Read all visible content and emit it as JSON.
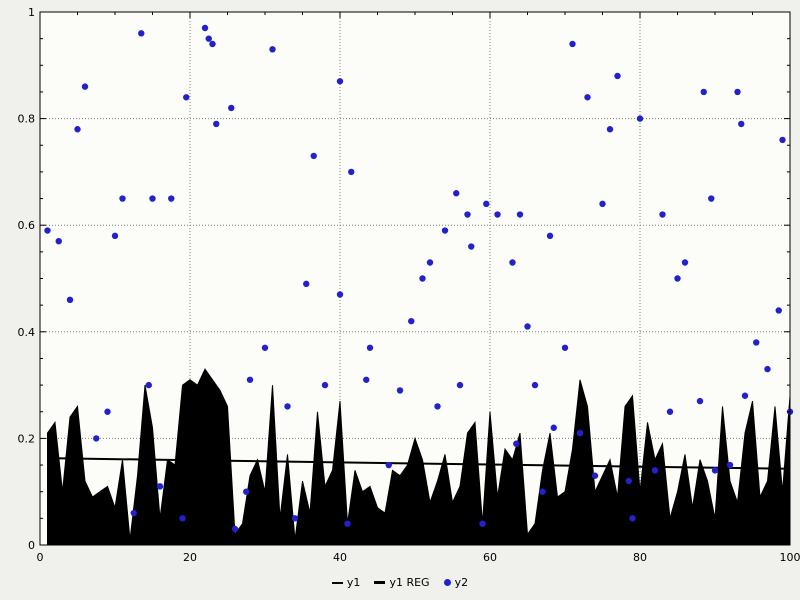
{
  "chart_data": {
    "type": "mixed",
    "title": "",
    "xlabel": "",
    "ylabel": "",
    "xlim": [
      0,
      100
    ],
    "ylim": [
      0,
      1
    ],
    "x_ticks": [
      0,
      20,
      40,
      60,
      80,
      100
    ],
    "y_ticks": [
      0,
      0.2,
      0.4,
      0.6,
      0.8,
      1
    ],
    "x_minor": 5,
    "y_minor": 0.05,
    "grid": "dotted",
    "legend_position": "bottom-center",
    "colors": {
      "outer_bg": "#f0f1ec",
      "plot_bg": "#fcfcf8",
      "grid": "#808080",
      "axis": "#000000",
      "area": "#000000",
      "regression": "#000000",
      "scatter": "#2222cc"
    },
    "series": [
      {
        "name": "y1",
        "type": "area",
        "color": "#000000",
        "x": [
          1,
          2,
          3,
          4,
          5,
          6,
          7,
          8,
          9,
          10,
          11,
          12,
          13,
          14,
          15,
          16,
          17,
          18,
          19,
          20,
          21,
          22,
          23,
          24,
          25,
          26,
          27,
          28,
          29,
          30,
          31,
          32,
          33,
          34,
          35,
          36,
          37,
          38,
          39,
          40,
          41,
          42,
          43,
          44,
          45,
          46,
          47,
          48,
          49,
          50,
          51,
          52,
          53,
          54,
          55,
          56,
          57,
          58,
          59,
          60,
          61,
          62,
          63,
          64,
          65,
          66,
          67,
          68,
          69,
          70,
          71,
          72,
          73,
          74,
          75,
          76,
          77,
          78,
          79,
          80,
          81,
          82,
          83,
          84,
          85,
          86,
          87,
          88,
          89,
          90,
          91,
          92,
          93,
          94,
          95,
          96,
          97,
          98,
          99,
          100
        ],
        "values": [
          0.21,
          0.23,
          0.1,
          0.24,
          0.26,
          0.12,
          0.09,
          0.1,
          0.11,
          0.07,
          0.16,
          0.01,
          0.13,
          0.3,
          0.22,
          0.05,
          0.16,
          0.15,
          0.3,
          0.31,
          0.3,
          0.33,
          0.31,
          0.29,
          0.26,
          0.02,
          0.04,
          0.13,
          0.16,
          0.1,
          0.3,
          0.05,
          0.17,
          0.01,
          0.12,
          0.06,
          0.25,
          0.11,
          0.14,
          0.27,
          0.04,
          0.14,
          0.1,
          0.11,
          0.07,
          0.06,
          0.14,
          0.13,
          0.15,
          0.2,
          0.16,
          0.08,
          0.12,
          0.17,
          0.08,
          0.11,
          0.21,
          0.23,
          0.04,
          0.25,
          0.09,
          0.18,
          0.16,
          0.21,
          0.02,
          0.04,
          0.14,
          0.21,
          0.09,
          0.1,
          0.18,
          0.31,
          0.26,
          0.1,
          0.13,
          0.16,
          0.09,
          0.26,
          0.28,
          0.1,
          0.23,
          0.16,
          0.19,
          0.05,
          0.1,
          0.17,
          0.07,
          0.16,
          0.12,
          0.05,
          0.26,
          0.12,
          0.08,
          0.21,
          0.27,
          0.09,
          0.12,
          0.26,
          0.1,
          0.28
        ]
      },
      {
        "name": "y1 REG",
        "type": "line",
        "color": "#000000",
        "points": [
          [
            1,
            0.163
          ],
          [
            25,
            0.158
          ],
          [
            50,
            0.153
          ],
          [
            75,
            0.148
          ],
          [
            100,
            0.143
          ]
        ]
      },
      {
        "name": "y2",
        "type": "scatter",
        "color": "#2222cc",
        "points": [
          [
            1,
            0.59
          ],
          [
            2.5,
            0.57
          ],
          [
            4,
            0.46
          ],
          [
            5,
            0.78
          ],
          [
            6,
            0.86
          ],
          [
            7.5,
            0.2
          ],
          [
            9,
            0.25
          ],
          [
            10,
            0.58
          ],
          [
            11,
            0.65
          ],
          [
            12.5,
            0.06
          ],
          [
            13.5,
            0.96
          ],
          [
            14.5,
            0.3
          ],
          [
            15,
            0.65
          ],
          [
            16,
            0.11
          ],
          [
            17.5,
            0.65
          ],
          [
            19,
            0.05
          ],
          [
            19.5,
            0.84
          ],
          [
            22,
            0.97
          ],
          [
            22.5,
            0.95
          ],
          [
            23,
            0.94
          ],
          [
            23.5,
            0.79
          ],
          [
            25.5,
            0.82
          ],
          [
            26,
            0.03
          ],
          [
            27.5,
            0.1
          ],
          [
            28,
            0.31
          ],
          [
            30,
            0.37
          ],
          [
            31,
            0.93
          ],
          [
            33,
            0.26
          ],
          [
            34,
            0.05
          ],
          [
            35.5,
            0.49
          ],
          [
            36.5,
            0.73
          ],
          [
            38,
            0.3
          ],
          [
            40,
            0.87
          ],
          [
            40,
            0.47
          ],
          [
            41,
            0.04
          ],
          [
            41.5,
            0.7
          ],
          [
            43.5,
            0.31
          ],
          [
            44,
            0.37
          ],
          [
            46.5,
            0.15
          ],
          [
            48,
            0.29
          ],
          [
            49.5,
            0.42
          ],
          [
            51,
            0.5
          ],
          [
            52,
            0.53
          ],
          [
            53,
            0.26
          ],
          [
            54,
            0.59
          ],
          [
            55.5,
            0.66
          ],
          [
            56,
            0.3
          ],
          [
            57,
            0.62
          ],
          [
            57.5,
            0.56
          ],
          [
            59,
            0.04
          ],
          [
            59.5,
            0.64
          ],
          [
            61,
            0.62
          ],
          [
            63,
            0.53
          ],
          [
            63.5,
            0.19
          ],
          [
            64,
            0.62
          ],
          [
            65,
            0.41
          ],
          [
            66,
            0.3
          ],
          [
            67,
            0.1
          ],
          [
            68,
            0.58
          ],
          [
            68.5,
            0.22
          ],
          [
            70,
            0.37
          ],
          [
            71,
            0.94
          ],
          [
            72,
            0.21
          ],
          [
            73,
            0.84
          ],
          [
            74,
            0.13
          ],
          [
            75,
            0.64
          ],
          [
            76,
            0.78
          ],
          [
            77,
            0.88
          ],
          [
            78.5,
            0.12
          ],
          [
            79,
            0.05
          ],
          [
            80,
            0.8
          ],
          [
            82,
            0.14
          ],
          [
            83,
            0.62
          ],
          [
            84,
            0.25
          ],
          [
            85,
            0.5
          ],
          [
            86,
            0.53
          ],
          [
            88,
            0.27
          ],
          [
            88.5,
            0.85
          ],
          [
            89.5,
            0.65
          ],
          [
            90,
            0.14
          ],
          [
            92,
            0.15
          ],
          [
            93,
            0.85
          ],
          [
            93.5,
            0.79
          ],
          [
            94,
            0.28
          ],
          [
            95.5,
            0.38
          ],
          [
            97,
            0.33
          ],
          [
            98.5,
            0.44
          ],
          [
            99,
            0.76
          ],
          [
            100,
            0.25
          ]
        ]
      }
    ]
  },
  "legend": {
    "items": [
      "y1",
      "y1 REG",
      "y2"
    ]
  }
}
